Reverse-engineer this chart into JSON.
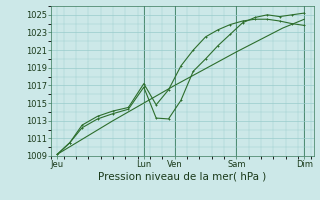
{
  "background_color": "#cce8e8",
  "grid_color": "#99cccc",
  "line_color": "#2d6e2d",
  "dark_line_color": "#4a8a4a",
  "ylim": [
    1009,
    1026
  ],
  "xlim": [
    0,
    8.5
  ],
  "yticks": [
    1009,
    1011,
    1013,
    1015,
    1017,
    1019,
    1021,
    1023,
    1025
  ],
  "xlabel": "Pression niveau de la mer( hPa )",
  "xlabel_fontsize": 7.5,
  "tick_fontsize": 6,
  "day_labels": [
    "Jeu",
    "Lun",
    "Ven",
    "Sam",
    "Dim"
  ],
  "day_positions": [
    0.2,
    3.0,
    4.0,
    6.0,
    8.2
  ],
  "vline_positions": [
    3.0,
    4.0,
    6.0,
    8.2
  ],
  "line1": {
    "x": [
      0.2,
      0.6,
      1.0,
      1.5,
      2.0,
      2.5,
      3.0,
      3.4,
      3.8,
      4.2,
      4.6,
      5.0,
      5.4,
      5.8,
      6.2,
      6.6,
      7.0,
      7.4,
      7.8,
      8.2
    ],
    "y": [
      1009.2,
      1010.5,
      1012.2,
      1013.2,
      1013.8,
      1014.3,
      1016.8,
      1013.3,
      1013.2,
      1015.3,
      1018.6,
      1020.0,
      1021.5,
      1022.8,
      1024.1,
      1024.7,
      1025.0,
      1024.8,
      1025.0,
      1025.2
    ]
  },
  "line2": {
    "x": [
      0.2,
      0.6,
      1.0,
      1.5,
      2.0,
      2.5,
      3.0,
      3.4,
      3.8,
      4.2,
      4.6,
      5.0,
      5.4,
      5.8,
      6.2,
      6.6,
      7.0,
      7.4,
      7.8,
      8.2
    ],
    "y": [
      1009.2,
      1010.5,
      1012.5,
      1013.5,
      1014.1,
      1014.5,
      1017.2,
      1014.8,
      1016.5,
      1019.2,
      1021.0,
      1022.5,
      1023.3,
      1023.9,
      1024.3,
      1024.5,
      1024.5,
      1024.3,
      1024.0,
      1023.8
    ]
  },
  "line3": {
    "x": [
      0.2,
      2.0,
      4.0,
      6.0,
      7.5,
      8.2
    ],
    "y": [
      1009.2,
      1013.0,
      1017.0,
      1020.8,
      1023.5,
      1024.5
    ]
  }
}
